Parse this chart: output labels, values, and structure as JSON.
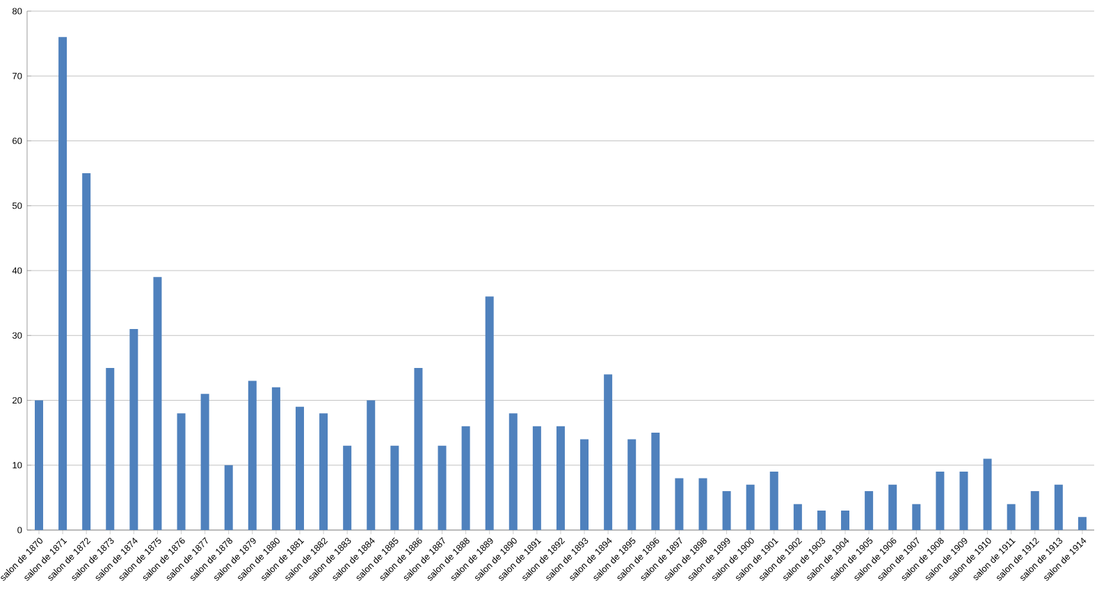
{
  "chart_data": {
    "type": "bar",
    "categories": [
      "salon de 1870",
      "salon de 1871",
      "salon de 1872",
      "salon de 1873",
      "salon de 1874",
      "salon de 1875",
      "salon de 1876",
      "salon de 1877",
      "salon de 1878",
      "salon de 1879",
      "salon de 1880",
      "salon de 1881",
      "salon de 1882",
      "salon de 1883",
      "salon de 1884",
      "salon de 1885",
      "salon de 1886",
      "salon de 1887",
      "salon de 1888",
      "salon de 1889",
      "salon de 1890",
      "salon de 1891",
      "salon de 1892",
      "salon de 1893",
      "salon de 1894",
      "salon de 1895",
      "salon de 1896",
      "salon de 1897",
      "salon de 1898",
      "salon de 1899",
      "salon de 1900",
      "salon de 1901",
      "salon de 1902",
      "salon de 1903",
      "salon de 1904",
      "salon de 1905",
      "salon de 1906",
      "salon de 1907",
      "salon de 1908",
      "salon de 1909",
      "salon de 1910",
      "salon de 1911",
      "salon de 1912",
      "salon de 1913",
      "salon de 1914"
    ],
    "values": [
      20,
      76,
      55,
      25,
      31,
      39,
      18,
      21,
      10,
      23,
      22,
      19,
      18,
      13,
      20,
      13,
      25,
      13,
      16,
      36,
      18,
      16,
      16,
      14,
      24,
      14,
      15,
      8,
      8,
      6,
      7,
      9,
      4,
      3,
      3,
      6,
      7,
      4,
      9,
      9,
      11,
      4,
      6,
      7,
      2
    ],
    "color": "#4f81bd",
    "ylim": [
      0,
      80
    ],
    "yticks": [
      0,
      10,
      20,
      30,
      40,
      50,
      60,
      70,
      80
    ],
    "grid": "y"
  }
}
